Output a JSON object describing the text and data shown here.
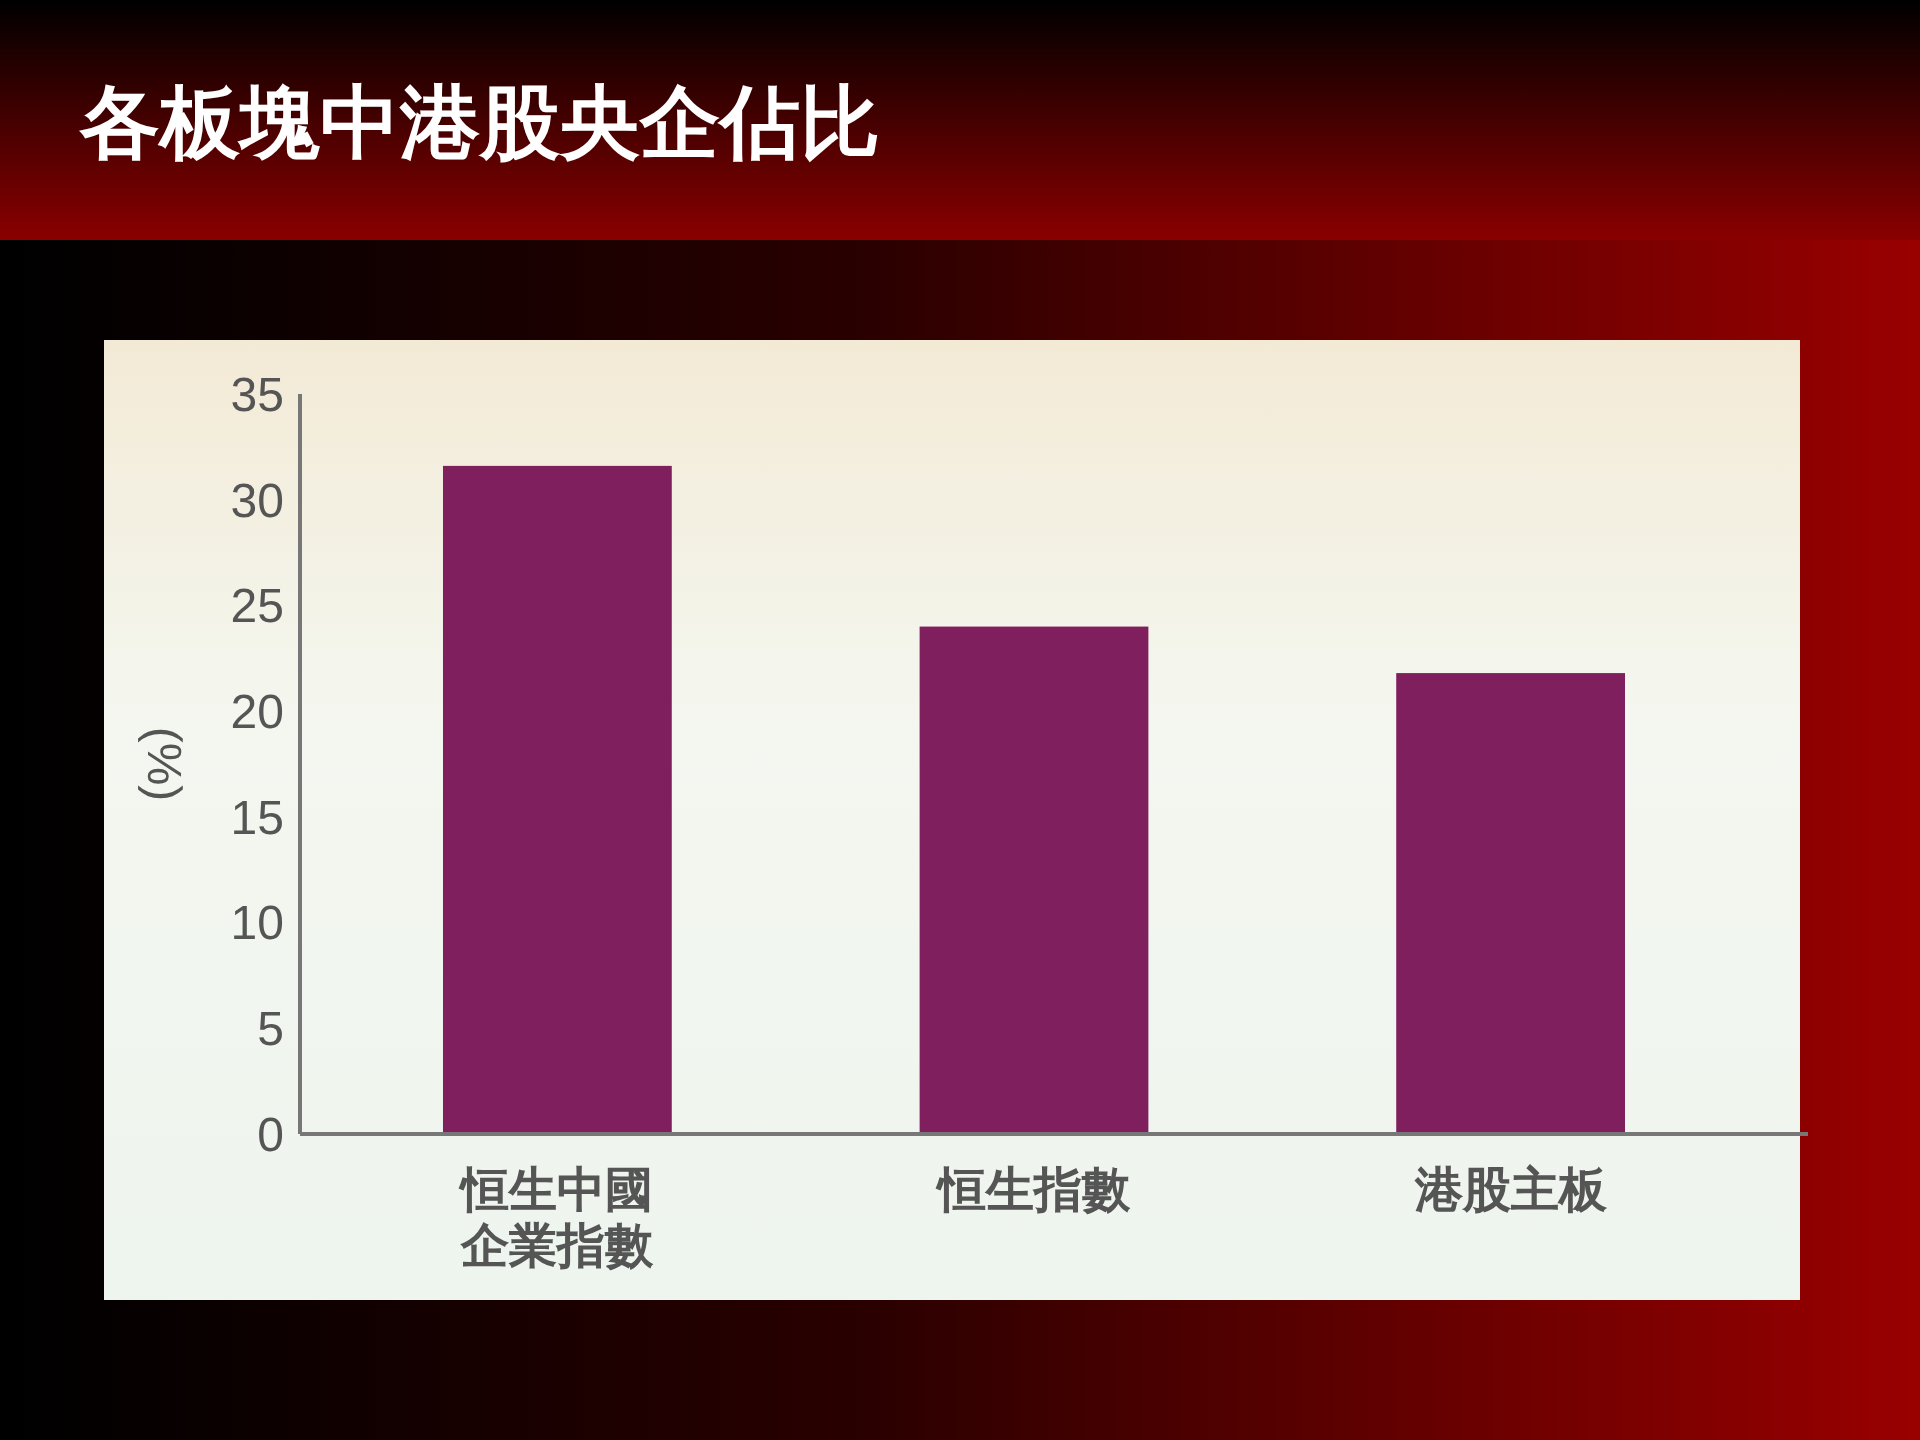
{
  "chart_data": {
    "type": "bar",
    "title": "各板塊中港股央企佔比",
    "ylabel": "(%)",
    "categories": [
      "恒生中國企業指數",
      "恒生指數",
      "港股主板"
    ],
    "values": [
      31.6,
      24.0,
      21.8
    ],
    "color": "#7f1f5e",
    "ylim": [
      0,
      35
    ],
    "yticks": [
      0,
      5,
      10,
      15,
      20,
      25,
      30,
      35
    ],
    "grid": false
  }
}
